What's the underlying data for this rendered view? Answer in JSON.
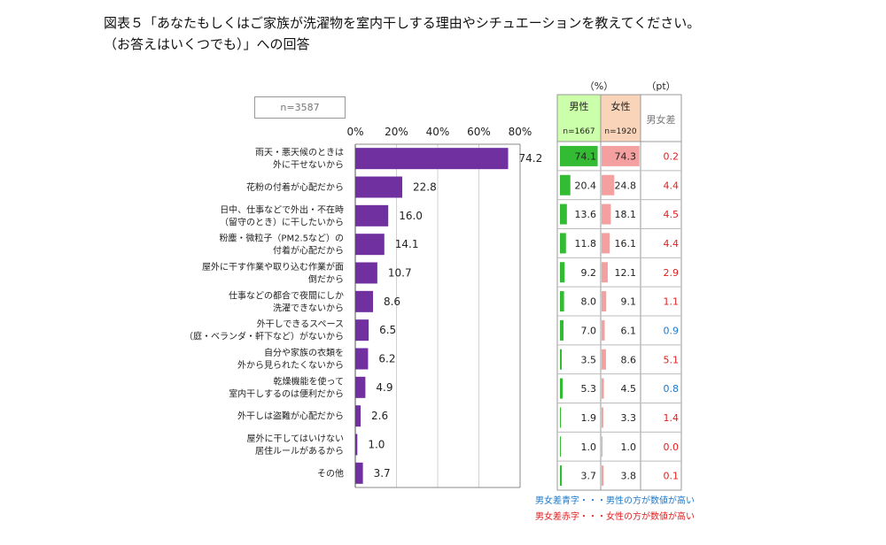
{
  "title": {
    "line1": "図表５「あなたもしくはご家族が洗濯物を室内干しする理由やシチュエーションを教えてください。",
    "line2": "（お答えはいくつでも）」への回答"
  },
  "sample_label": "n=3587",
  "footnotes": {
    "blue": "男女差青字・・・男性の方が数値が高い",
    "red": "男女差赤字・・・女性の方が数値が高い"
  },
  "colors": {
    "bar": "#7030a0",
    "male_bar": "#33bb33",
    "female_bar": "#f4a0a0",
    "male_header": "#ccffaa",
    "female_header": "#f9d4b8",
    "diff_blue": "#1f78c8",
    "diff_red": "#e02020"
  },
  "chart_data": [
    {
      "type": "bar",
      "orientation": "horizontal",
      "xlim": [
        0,
        80
      ],
      "xticks": [
        "0%",
        "20%",
        "40%",
        "60%",
        "80%"
      ],
      "categories": [
        [
          "雨天・悪天候のときは",
          "外に干せないから"
        ],
        [
          "花粉の付着が心配だから"
        ],
        [
          "日中、仕事などで外出・不在時",
          "（留守のとき）に干したいから"
        ],
        [
          "粉塵・微粒子（PM2.5など）の",
          "付着が心配だから"
        ],
        [
          "屋外に干す作業や取り込む作業が面",
          "倒だから"
        ],
        [
          "仕事などの都合で夜間にしか",
          "洗濯できないから"
        ],
        [
          "外干しできるスペース",
          "（庭・ベランダ・軒下など）がないから"
        ],
        [
          "自分や家族の衣類を",
          "外から見られたくないから"
        ],
        [
          "乾燥機能を使って",
          "室内干しするのは便利だから"
        ],
        [
          "外干しは盗難が心配だから"
        ],
        [
          "屋外に干してはいけない",
          "居住ルールがあるから"
        ],
        [
          "その他"
        ]
      ],
      "values": [
        74.2,
        22.8,
        16.0,
        14.1,
        10.7,
        8.6,
        6.5,
        6.2,
        4.9,
        2.6,
        1.0,
        3.7
      ],
      "value_labels": [
        "74.2",
        "22.8",
        "16.0",
        "14.1",
        "10.7",
        "8.6",
        "6.5",
        "6.2",
        "4.9",
        "2.6",
        "1.0",
        "3.7"
      ]
    },
    {
      "type": "table",
      "unit_pct": "（%）",
      "unit_pt": "（pt）",
      "columns": [
        {
          "label": "男性",
          "n": "n=1667"
        },
        {
          "label": "女性",
          "n": "n=1920"
        },
        {
          "label": "男女差"
        }
      ],
      "male": [
        74.1,
        20.4,
        13.6,
        11.8,
        9.2,
        8.0,
        7.0,
        3.5,
        5.3,
        1.9,
        1.0,
        3.7
      ],
      "female": [
        74.3,
        24.8,
        18.1,
        16.1,
        12.1,
        9.1,
        6.1,
        8.6,
        4.5,
        3.3,
        1.0,
        3.8
      ],
      "male_labels": [
        "74.1",
        "20.4",
        "13.6",
        "11.8",
        "9.2",
        "8.0",
        "7.0",
        "3.5",
        "5.3",
        "1.9",
        "1.0",
        "3.7"
      ],
      "female_labels": [
        "74.3",
        "24.8",
        "18.1",
        "16.1",
        "12.1",
        "9.1",
        "6.1",
        "8.6",
        "4.5",
        "3.3",
        "1.0",
        "3.8"
      ],
      "diff_labels": [
        "0.2",
        "4.4",
        "4.5",
        "4.4",
        "2.9",
        "1.1",
        "0.9",
        "5.1",
        "0.8",
        "1.4",
        "0.0",
        "0.1"
      ],
      "diff_color": [
        "red",
        "red",
        "red",
        "red",
        "red",
        "red",
        "blue",
        "red",
        "blue",
        "red",
        "red",
        "red"
      ]
    }
  ]
}
